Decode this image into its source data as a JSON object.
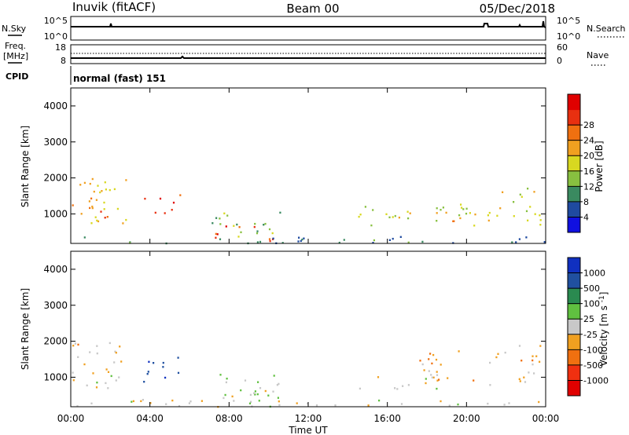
{
  "header": {
    "station": "Inuvik (fitACF)",
    "beam": "Beam 00",
    "date": "05/Dec/2018"
  },
  "strip_nsky": {
    "left_label": "N.Sky",
    "left_ticks": [
      "10^5",
      "10^0"
    ],
    "right_ticks": [
      "10^5",
      "10^0"
    ],
    "right_label": "N.Search"
  },
  "strip_freq": {
    "left_label": "Freq.",
    "left_unit": "[MHz]",
    "left_ticks": [
      "18",
      "8"
    ],
    "right_ticks": [
      "60",
      "0"
    ],
    "right_label": "Nave"
  },
  "strip_cpid": {
    "label": "CPID",
    "value": "normal (fast) 151"
  },
  "colors": {
    "power": [
      "#1010e0",
      "#1f4aa0",
      "#3a8a60",
      "#88c040",
      "#d8d820",
      "#f0a020",
      "#f07010",
      "#e83010",
      "#e00000"
    ],
    "velocity": [
      "#e00000",
      "#f03010",
      "#f07010",
      "#f0a020",
      "#c8c8c8",
      "#60c040",
      "#2a8a50",
      "#2050a0",
      "#1030c0"
    ]
  },
  "chart_data": [
    {
      "type": "heatmap",
      "name": "Power",
      "ylabel": "Slant Range [km]",
      "ylim": [
        180,
        4500
      ],
      "xlim": [
        0,
        24
      ],
      "y_ticks": [
        1000,
        2000,
        3000,
        4000
      ],
      "colorbar": {
        "label": "Power [dB]",
        "ticks": [
          "4",
          "8",
          "12",
          "16",
          "20",
          "24",
          "28"
        ],
        "range": [
          0,
          32
        ]
      },
      "regions": [
        {
          "t0": 0.0,
          "t1": 2.8,
          "r0": 700,
          "r1": 2000,
          "value": 18
        },
        {
          "t0": 0.0,
          "t1": 1.2,
          "r0": 1000,
          "r1": 1900,
          "value": 22
        },
        {
          "t0": 1.2,
          "t1": 2.6,
          "r0": 850,
          "r1": 1200,
          "value": 24
        },
        {
          "t0": 3.6,
          "t1": 5.5,
          "r0": 1000,
          "r1": 1600,
          "value": 26
        },
        {
          "t0": 5.1,
          "t1": 5.2,
          "r0": 3300,
          "r1": 3500,
          "value": 10
        },
        {
          "t0": 6.8,
          "t1": 10.6,
          "r0": 300,
          "r1": 1100,
          "value": 12
        },
        {
          "t0": 7.2,
          "t1": 10.2,
          "r0": 200,
          "r1": 700,
          "value": 27
        },
        {
          "t0": 14.5,
          "t1": 20.5,
          "r0": 700,
          "r1": 1300,
          "value": 14
        },
        {
          "t0": 16.5,
          "t1": 20.5,
          "r0": 800,
          "r1": 1100,
          "value": 22
        },
        {
          "t0": 21.0,
          "t1": 23.8,
          "r0": 700,
          "r1": 1800,
          "value": 16
        },
        {
          "t0": 0.0,
          "t1": 24.0,
          "r0": 200,
          "r1": 400,
          "value": 8
        }
      ]
    },
    {
      "type": "heatmap",
      "name": "Velocity",
      "ylabel": "Slant Range [km]",
      "ylim": [
        180,
        4500
      ],
      "xlim": [
        0,
        24
      ],
      "y_ticks": [
        1000,
        2000,
        3000,
        4000
      ],
      "colorbar": {
        "label": "Velocity [m s^-1]",
        "ticks": [
          "-1000",
          "-500",
          "-100",
          "-25",
          "25",
          "100",
          "500",
          "1000"
        ],
        "range": [
          -1200,
          1200
        ]
      },
      "regions": [
        {
          "t0": 0.0,
          "t1": 2.8,
          "r0": 700,
          "r1": 2000,
          "value": -150
        },
        {
          "t0": 1.2,
          "t1": 2.6,
          "r0": 800,
          "r1": 1200,
          "value": 200
        },
        {
          "t0": 3.6,
          "t1": 5.5,
          "r0": 900,
          "r1": 1700,
          "value": 900
        },
        {
          "t0": 5.1,
          "t1": 5.2,
          "r0": 3300,
          "r1": 3500,
          "value": 60
        },
        {
          "t0": 6.8,
          "t1": 10.6,
          "r0": 300,
          "r1": 1100,
          "value": 10
        },
        {
          "t0": 7.2,
          "t1": 10.2,
          "r0": 200,
          "r1": 700,
          "value": 60
        },
        {
          "t0": 14.5,
          "t1": 18.5,
          "r0": 700,
          "r1": 1100,
          "value": 5
        },
        {
          "t0": 17.5,
          "t1": 20.5,
          "r0": 800,
          "r1": 1800,
          "value": -300
        },
        {
          "t0": 21.0,
          "t1": 23.8,
          "r0": 800,
          "r1": 1900,
          "value": -200
        },
        {
          "t0": 0.0,
          "t1": 24.0,
          "r0": 200,
          "r1": 400,
          "value": -50
        }
      ]
    }
  ],
  "x_axis": {
    "label": "Time UT",
    "ticks": [
      "00:00",
      "04:00",
      "08:00",
      "12:00",
      "16:00",
      "20:00",
      "00:00"
    ]
  }
}
